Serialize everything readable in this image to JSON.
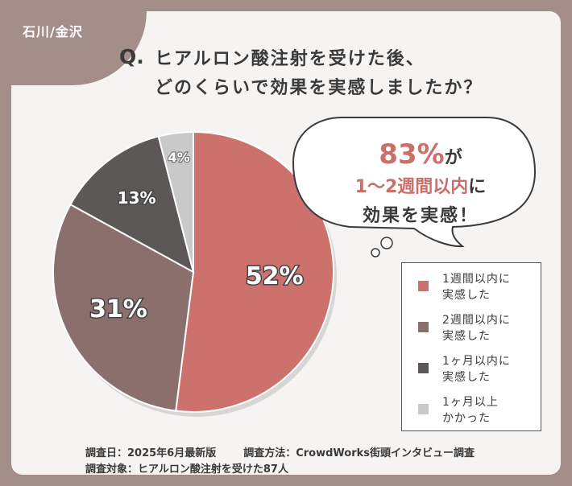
{
  "badge": {
    "region": "石川/金沢"
  },
  "question": {
    "label": "Q.",
    "line1": "ヒアルロン酸注射を受けた後、",
    "line2": "どのくらいで効果を実感しましたか？"
  },
  "callout": {
    "percent": "83%",
    "particle1": "が",
    "period": "1～2週間以内",
    "particle2": "に",
    "line3": "効果を実感！"
  },
  "footer": {
    "date": "調査日：2025年6月最新版",
    "method": "調査方法：CrowdWorks街頭インタビュー調査",
    "target": "調査対象：ヒアルロン酸注射を受けた87人"
  },
  "colors": {
    "frame": "#a48e8a",
    "accent": "#c9706b"
  },
  "chart_data": {
    "type": "pie",
    "start_angle_deg": 0,
    "direction": "clockwise",
    "slices": [
      {
        "value": 52,
        "label": "52%",
        "legend": [
          "1週間以内に",
          "実感した"
        ],
        "color": "#cd716c"
      },
      {
        "value": 31,
        "label": "31%",
        "legend": [
          "2週間以内に",
          "実感した"
        ],
        "color": "#8a6f6d"
      },
      {
        "value": 13,
        "label": "13%",
        "legend": [
          "1ヶ月以内に",
          "実感した"
        ],
        "color": "#5c5858"
      },
      {
        "value": 4,
        "label": "4%",
        "legend": [
          "1ヶ月以上",
          "かかった"
        ],
        "color": "#c9c9c9"
      }
    ],
    "legend_position": "right"
  }
}
